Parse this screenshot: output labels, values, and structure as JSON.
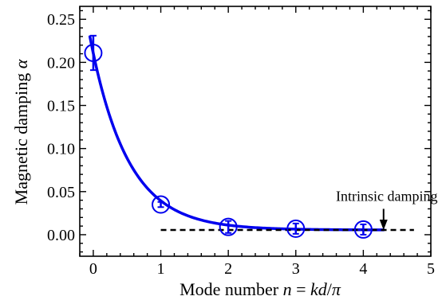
{
  "chart_data": {
    "type": "scatter",
    "title": "",
    "xlabel_parts": [
      {
        "text": "Mode number ",
        "italic": false
      },
      {
        "text": "n",
        "italic": true
      },
      {
        "text": " = ",
        "italic": false
      },
      {
        "text": "kd",
        "italic": true
      },
      {
        "text": "/",
        "italic": false
      },
      {
        "text": "π",
        "italic": true
      }
    ],
    "ylabel_parts": [
      {
        "text": "Magnetic damping ",
        "italic": false
      },
      {
        "text": "α",
        "italic": true
      }
    ],
    "xlim": [
      -0.2,
      5.0
    ],
    "ylim": [
      -0.025,
      0.265
    ],
    "xticks": [
      "0",
      "1",
      "2",
      "3",
      "4",
      "5"
    ],
    "yticks": [
      "0.00",
      "0.05",
      "0.10",
      "0.15",
      "0.20",
      "0.25"
    ],
    "grid": false,
    "legend": "none",
    "series": [
      {
        "kind": "points",
        "marker": "open-circle",
        "color": "#0000ee",
        "x": [
          0,
          1,
          2,
          3,
          4
        ],
        "y": [
          0.211,
          0.035,
          0.009,
          0.007,
          0.006
        ],
        "yerr": [
          0.02,
          0.003,
          0.007,
          0.006,
          0.006
        ]
      },
      {
        "kind": "fit-curve",
        "color": "#0000ee",
        "function": "exponential",
        "x_range": [
          -0.05,
          4.3
        ],
        "params": {
          "offset": 0.0055,
          "amplitude": 0.205,
          "decay_rate": 1.8
        }
      },
      {
        "kind": "reference-line",
        "style": "dashed",
        "color": "#000000",
        "x": [
          1.0,
          4.75
        ],
        "y": [
          0.0055,
          0.0055
        ]
      }
    ],
    "annotations": [
      {
        "text": "Intrinsic damping",
        "arrow_to": {
          "x": 4.3,
          "y": 0.0055
        },
        "arrow_from": {
          "x": 4.3,
          "y": 0.03
        }
      }
    ]
  }
}
